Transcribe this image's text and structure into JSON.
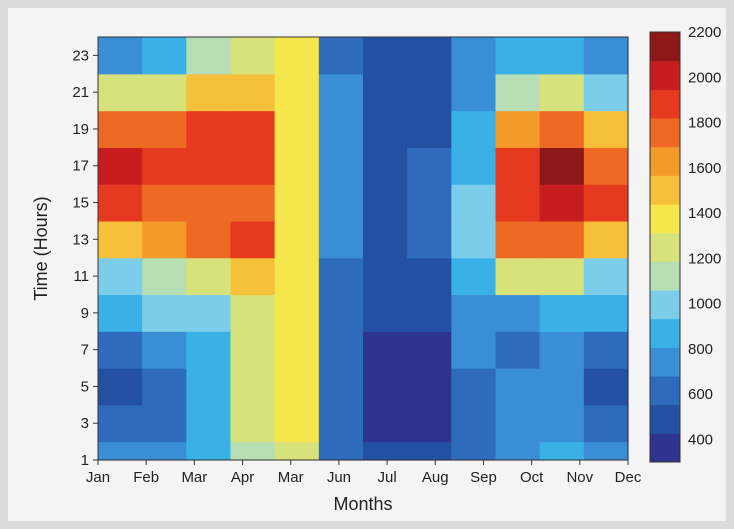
{
  "chart_data": {
    "type": "heatmap",
    "title": "",
    "xlabel": "Months",
    "ylabel": "Time (Hours)",
    "x_categories": [
      "Jan",
      "Feb",
      "Mar",
      "Apr",
      "Mar",
      "Jun",
      "Jul",
      "Aug",
      "Sep",
      "Oct",
      "Nov",
      "Dec"
    ],
    "y_ticks": [
      1,
      3,
      5,
      7,
      9,
      11,
      13,
      15,
      17,
      19,
      21,
      23
    ],
    "y_range": [
      1,
      24
    ],
    "hours": [
      1,
      3,
      5,
      7,
      9,
      11,
      13,
      15,
      17,
      19,
      21,
      23
    ],
    "values": [
      [
        700,
        750,
        850,
        1150,
        1300,
        650,
        450,
        450,
        600,
        800,
        850,
        700
      ],
      [
        600,
        650,
        850,
        1200,
        1350,
        600,
        400,
        400,
        600,
        750,
        800,
        650
      ],
      [
        550,
        650,
        850,
        1200,
        1350,
        600,
        400,
        400,
        650,
        700,
        700,
        550
      ],
      [
        650,
        750,
        850,
        1200,
        1350,
        600,
        400,
        400,
        700,
        650,
        700,
        650
      ],
      [
        850,
        1000,
        1000,
        1250,
        1350,
        600,
        450,
        500,
        800,
        800,
        850,
        850
      ],
      [
        1000,
        1100,
        1300,
        1500,
        1400,
        650,
        500,
        550,
        900,
        1200,
        1200,
        1050
      ],
      [
        1500,
        1600,
        1800,
        1900,
        1400,
        700,
        550,
        600,
        1000,
        1700,
        1800,
        1500
      ],
      [
        1900,
        1800,
        1800,
        1800,
        1400,
        700,
        550,
        600,
        950,
        1900,
        2050,
        1850
      ],
      [
        1950,
        1850,
        1850,
        1850,
        1350,
        700,
        550,
        600,
        900,
        1900,
        2100,
        1800
      ],
      [
        1700,
        1750,
        1850,
        1850,
        1400,
        700,
        550,
        550,
        850,
        1600,
        1800,
        1500
      ],
      [
        1300,
        1300,
        1450,
        1500,
        1400,
        700,
        550,
        500,
        800,
        1100,
        1200,
        1000
      ],
      [
        800,
        850,
        1100,
        1300,
        1350,
        650,
        500,
        450,
        700,
        850,
        900,
        750
      ]
    ],
    "colorbar": {
      "min": 300,
      "max": 2200,
      "ticks": [
        400,
        600,
        800,
        1000,
        1200,
        1400,
        1600,
        1800,
        2000,
        2200
      ],
      "colors": [
        "#2e338f",
        "#2450a3",
        "#2f6bbd",
        "#3a8ed6",
        "#3ab1e6",
        "#7ccdea",
        "#b7deb4",
        "#d7e27a",
        "#f4e64c",
        "#f6c03a",
        "#f39a2b",
        "#ee6a24",
        "#e53a1f",
        "#c81d1f",
        "#8e1717"
      ]
    },
    "grid": false,
    "legend": "colorbar-right"
  }
}
